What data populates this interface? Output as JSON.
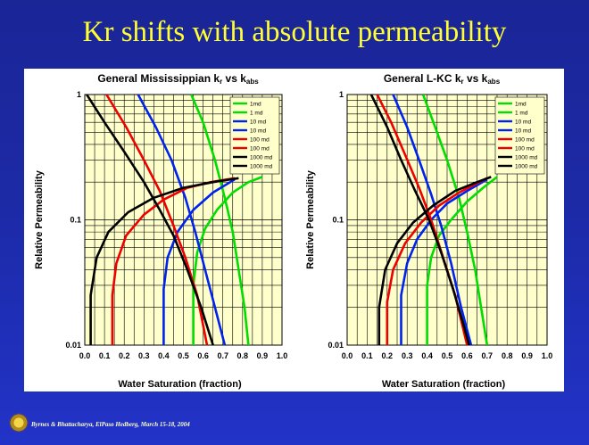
{
  "slide_title": "Kr shifts with absolute permeability",
  "footer": "Byrnes & Bhattacharya, ElPaso Hedberg, March 15-18, 2004",
  "colors": {
    "background": "#1a2596",
    "title": "#ffff33",
    "plot_bg": "#ffffcc"
  },
  "chart_data": [
    {
      "type": "line",
      "title": "General Mississippian kr vs kabs",
      "title_main": "General Mississippian ",
      "title_kr_k": "k",
      "title_kr_sub": "r",
      "title_vs": " vs k",
      "title_abs_sub": "abs",
      "xlabel": "Water Saturation (fraction)",
      "ylabel": "Relative Permeability",
      "xlim": [
        0,
        1
      ],
      "ylim": [
        0.01,
        1
      ],
      "yscale": "log",
      "grid": true,
      "legend_position": "top-right",
      "xticks": [
        "0.0",
        "0.1",
        "0.2",
        "0.3",
        "0.4",
        "0.5",
        "0.6",
        "0.7",
        "0.8",
        "0.9",
        "1.0"
      ],
      "yticks": [
        "0.01",
        "0.1",
        "1"
      ],
      "series": [
        {
          "name": "1md",
          "color": "#00dd00",
          "points": [
            [
              0.54,
              1
            ],
            [
              0.6,
              0.6
            ],
            [
              0.66,
              0.3
            ],
            [
              0.71,
              0.15
            ],
            [
              0.75,
              0.08
            ],
            [
              0.78,
              0.04
            ],
            [
              0.81,
              0.02
            ],
            [
              0.83,
              0.01
            ]
          ]
        },
        {
          "name": "1 md",
          "color": "#00dd00",
          "points": [
            [
              0.55,
              0.01
            ],
            [
              0.55,
              0.03
            ],
            [
              0.57,
              0.055
            ],
            [
              0.61,
              0.085
            ],
            [
              0.67,
              0.12
            ],
            [
              0.75,
              0.165
            ],
            [
              0.83,
              0.2
            ],
            [
              0.9,
              0.22
            ]
          ]
        },
        {
          "name": "10 md",
          "color": "#0022ee",
          "points": [
            [
              0.27,
              1
            ],
            [
              0.36,
              0.55
            ],
            [
              0.44,
              0.3
            ],
            [
              0.51,
              0.15
            ],
            [
              0.56,
              0.08
            ],
            [
              0.61,
              0.04
            ],
            [
              0.66,
              0.02
            ],
            [
              0.71,
              0.01
            ]
          ]
        },
        {
          "name": "10 md",
          "color": "#0022ee",
          "points": [
            [
              0.4,
              0.01
            ],
            [
              0.4,
              0.028
            ],
            [
              0.42,
              0.05
            ],
            [
              0.47,
              0.08
            ],
            [
              0.55,
              0.12
            ],
            [
              0.65,
              0.165
            ],
            [
              0.76,
              0.21
            ]
          ]
        },
        {
          "name": "100 md",
          "color": "#ee0000",
          "points": [
            [
              0.11,
              1
            ],
            [
              0.21,
              0.55
            ],
            [
              0.3,
              0.3
            ],
            [
              0.38,
              0.17
            ],
            [
              0.45,
              0.09
            ],
            [
              0.51,
              0.05
            ],
            [
              0.57,
              0.025
            ],
            [
              0.62,
              0.01
            ]
          ]
        },
        {
          "name": "100 md",
          "color": "#ee0000",
          "points": [
            [
              0.14,
              0.01
            ],
            [
              0.14,
              0.025
            ],
            [
              0.16,
              0.045
            ],
            [
              0.21,
              0.075
            ],
            [
              0.3,
              0.11
            ],
            [
              0.4,
              0.145
            ],
            [
              0.52,
              0.18
            ],
            [
              0.64,
              0.2
            ],
            [
              0.76,
              0.215
            ]
          ]
        },
        {
          "name": "1000 md",
          "color": "#000000",
          "points": [
            [
              0.01,
              1
            ],
            [
              0.1,
              0.6
            ],
            [
              0.2,
              0.35
            ],
            [
              0.3,
              0.2
            ],
            [
              0.38,
              0.12
            ],
            [
              0.45,
              0.075
            ],
            [
              0.52,
              0.04
            ],
            [
              0.59,
              0.02
            ],
            [
              0.65,
              0.01
            ]
          ]
        },
        {
          "name": "1000 md",
          "color": "#000000",
          "points": [
            [
              0.03,
              0.01
            ],
            [
              0.03,
              0.025
            ],
            [
              0.06,
              0.05
            ],
            [
              0.12,
              0.08
            ],
            [
              0.22,
              0.115
            ],
            [
              0.35,
              0.15
            ],
            [
              0.5,
              0.18
            ],
            [
              0.65,
              0.2
            ],
            [
              0.78,
              0.215
            ]
          ]
        }
      ]
    },
    {
      "type": "line",
      "title": "General L-KC kr vs kabs",
      "title_main": "General L-KC ",
      "title_kr_k": "k",
      "title_kr_sub": "r",
      "title_vs": " vs k",
      "title_abs_sub": "abs",
      "xlabel": "Water Saturation (fraction)",
      "ylabel": "Relative Permeability",
      "xlim": [
        0,
        1
      ],
      "ylim": [
        0.01,
        1
      ],
      "yscale": "log",
      "grid": true,
      "legend_position": "top-right",
      "xticks": [
        "0.0",
        "0.1",
        "0.2",
        "0.3",
        "0.4",
        "0.5",
        "0.6",
        "0.7",
        "0.8",
        "0.9",
        "1.0"
      ],
      "yticks": [
        "0.01",
        "0.1",
        "1"
      ],
      "series": [
        {
          "name": "1md",
          "color": "#00dd00",
          "points": [
            [
              0.38,
              1
            ],
            [
              0.44,
              0.55
            ],
            [
              0.5,
              0.3
            ],
            [
              0.56,
              0.15
            ],
            [
              0.6,
              0.08
            ],
            [
              0.64,
              0.04
            ],
            [
              0.67,
              0.02
            ],
            [
              0.7,
              0.01
            ]
          ]
        },
        {
          "name": "1 md",
          "color": "#00dd00",
          "points": [
            [
              0.4,
              0.01
            ],
            [
              0.4,
              0.03
            ],
            [
              0.42,
              0.05
            ],
            [
              0.46,
              0.075
            ],
            [
              0.52,
              0.1
            ],
            [
              0.6,
              0.14
            ],
            [
              0.68,
              0.18
            ],
            [
              0.75,
              0.22
            ]
          ]
        },
        {
          "name": "10 md",
          "color": "#0022ee",
          "points": [
            [
              0.23,
              1
            ],
            [
              0.3,
              0.55
            ],
            [
              0.36,
              0.3
            ],
            [
              0.42,
              0.16
            ],
            [
              0.47,
              0.09
            ],
            [
              0.52,
              0.045
            ],
            [
              0.57,
              0.02
            ],
            [
              0.62,
              0.01
            ]
          ]
        },
        {
          "name": "10 md",
          "color": "#0022ee",
          "points": [
            [
              0.27,
              0.01
            ],
            [
              0.27,
              0.025
            ],
            [
              0.3,
              0.045
            ],
            [
              0.35,
              0.07
            ],
            [
              0.42,
              0.1
            ],
            [
              0.5,
              0.135
            ],
            [
              0.6,
              0.17
            ],
            [
              0.7,
              0.21
            ]
          ]
        },
        {
          "name": "100 md",
          "color": "#ee0000",
          "points": [
            [
              0.15,
              1
            ],
            [
              0.22,
              0.6
            ],
            [
              0.29,
              0.33
            ],
            [
              0.36,
              0.18
            ],
            [
              0.42,
              0.1
            ],
            [
              0.48,
              0.05
            ],
            [
              0.54,
              0.025
            ],
            [
              0.6,
              0.01
            ]
          ]
        },
        {
          "name": "100 md",
          "color": "#ee0000",
          "points": [
            [
              0.2,
              0.01
            ],
            [
              0.2,
              0.022
            ],
            [
              0.23,
              0.04
            ],
            [
              0.29,
              0.065
            ],
            [
              0.37,
              0.095
            ],
            [
              0.46,
              0.13
            ],
            [
              0.56,
              0.165
            ],
            [
              0.66,
              0.2
            ],
            [
              0.7,
              0.215
            ]
          ]
        },
        {
          "name": "1000 md",
          "color": "#000000",
          "points": [
            [
              0.12,
              1
            ],
            [
              0.2,
              0.55
            ],
            [
              0.27,
              0.3
            ],
            [
              0.34,
              0.17
            ],
            [
              0.41,
              0.1
            ],
            [
              0.47,
              0.055
            ],
            [
              0.53,
              0.028
            ],
            [
              0.58,
              0.015
            ],
            [
              0.61,
              0.01
            ]
          ]
        },
        {
          "name": "1000 md",
          "color": "#000000",
          "points": [
            [
              0.16,
              0.01
            ],
            [
              0.16,
              0.02
            ],
            [
              0.19,
              0.04
            ],
            [
              0.25,
              0.065
            ],
            [
              0.33,
              0.095
            ],
            [
              0.43,
              0.13
            ],
            [
              0.54,
              0.17
            ],
            [
              0.65,
              0.2
            ],
            [
              0.72,
              0.22
            ]
          ]
        }
      ]
    }
  ]
}
